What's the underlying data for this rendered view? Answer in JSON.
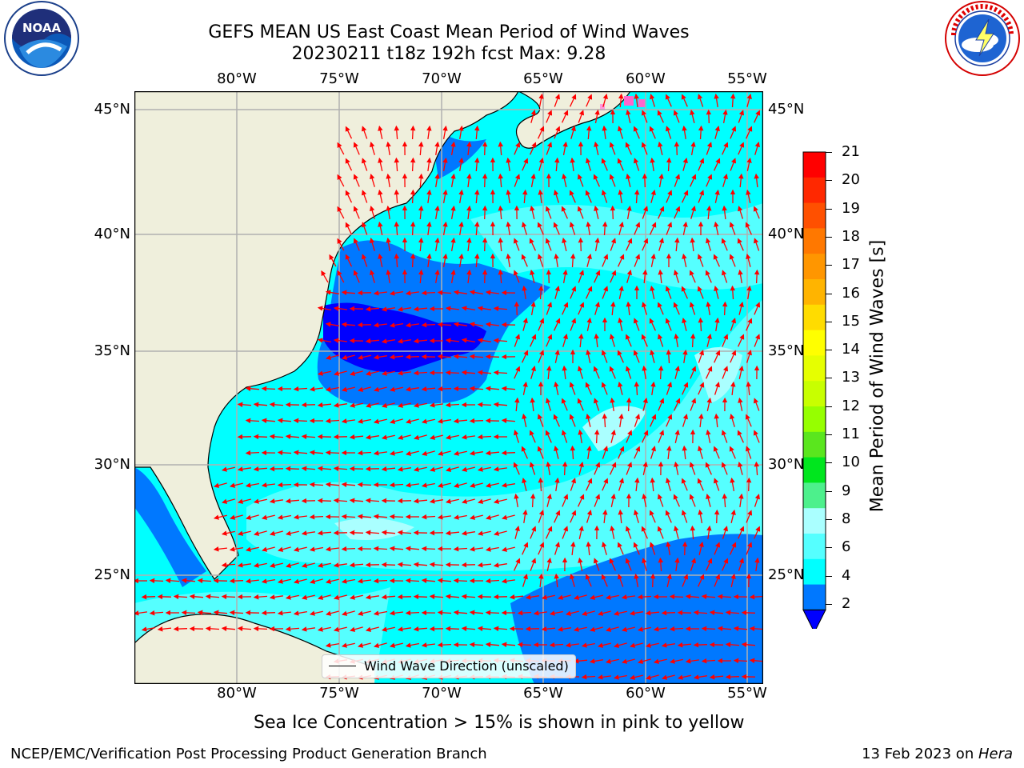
{
  "header": {
    "title_line1": "GEFS MEAN US East Coast Mean Period of Wind Waves",
    "title_line2": "20230211 t18z 192h fcst   Max: 9.28"
  },
  "logos": {
    "left": {
      "icon": "noaa-logo",
      "text": "NOAA"
    },
    "right": {
      "icon": "national-weather-service-logo"
    }
  },
  "map": {
    "lon_labels": [
      "80°W",
      "75°W",
      "70°W",
      "65°W",
      "60°W",
      "55°W"
    ],
    "lat_labels": [
      "45°N",
      "40°N",
      "35°N",
      "30°N",
      "25°N"
    ],
    "land_color": "#efefdc",
    "coast_color": "#000000",
    "grid_color": "#b0b0b0",
    "arrow_color": "#ff0000",
    "legend_label": "Wind Wave Direction (unscaled)"
  },
  "colorbar": {
    "label": "Mean Period of Wind Waves [s]",
    "ticks": [
      "21",
      "20",
      "19",
      "18",
      "17",
      "16",
      "15",
      "14",
      "13",
      "12",
      "11",
      "10",
      "9",
      "8",
      "6",
      "4",
      "2"
    ],
    "colors": [
      "#ff0000",
      "#ff2800",
      "#ff5000",
      "#ff7800",
      "#ff9600",
      "#ffb400",
      "#ffdc00",
      "#ffff00",
      "#e6ff00",
      "#c8ff00",
      "#96ff00",
      "#5ae61e",
      "#00e61e",
      "#4df08c",
      "#aaffff",
      "#55ffff",
      "#00ffff",
      "#0078ff"
    ],
    "extend_color": "#0000ff"
  },
  "footer": {
    "sea_ice_note": "Sea Ice Concentration > 15% is shown in pink to yellow",
    "branch": "NCEP/EMC/Verification Post Processing Product Generation Branch",
    "date": "13 Feb 2023 on ",
    "machine": "Hera"
  }
}
